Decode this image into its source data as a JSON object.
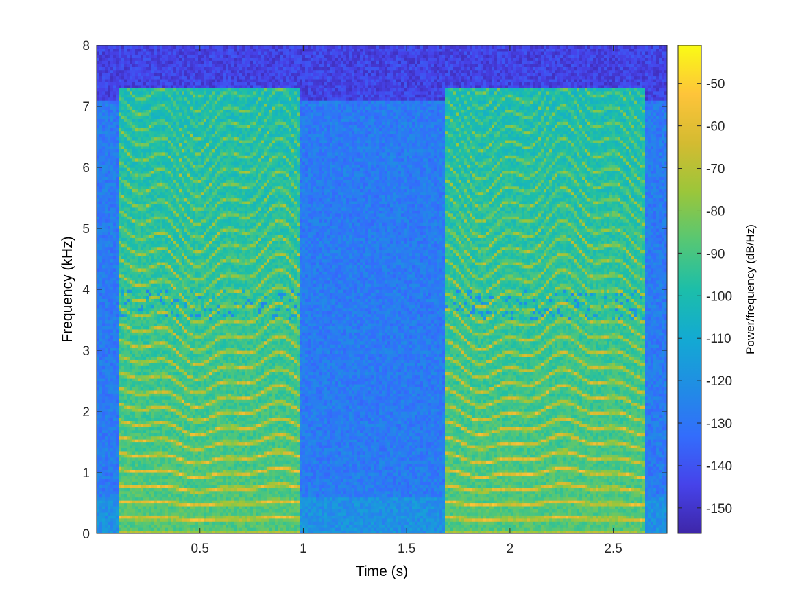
{
  "chart_data": {
    "type": "heatmap",
    "title": "",
    "xlabel": "Time (s)",
    "ylabel": "Frequency (kHz)",
    "xlim": [
      0,
      2.76
    ],
    "ylim": [
      0,
      8
    ],
    "x_ticks": [
      0.5,
      1,
      1.5,
      2,
      2.5
    ],
    "x_tick_labels": [
      "0.5",
      "1",
      "1.5",
      "2",
      "2.5"
    ],
    "y_ticks": [
      0,
      1,
      2,
      3,
      4,
      5,
      6,
      7,
      8
    ],
    "y_tick_labels": [
      "0",
      "1",
      "2",
      "3",
      "4",
      "5",
      "6",
      "7",
      "8"
    ],
    "colormap": "parula",
    "colorbar": {
      "label": "Power/frequency (dB/Hz)",
      "range": [
        -156,
        -41
      ],
      "ticks": [
        -50,
        -60,
        -70,
        -80,
        -90,
        -100,
        -110,
        -120,
        -130,
        -140,
        -150
      ],
      "tick_labels": [
        "-50",
        "-60",
        "-70",
        "-80",
        "-90",
        "-100",
        "-110",
        "-120",
        "-130",
        "-140",
        "-150"
      ]
    },
    "voiced_segments_s": [
      [
        0.1,
        0.98
      ],
      [
        1.68,
        2.66
      ]
    ],
    "silence_segment_s": [
      1.0,
      1.66
    ],
    "harmonic_bands_khz": [
      0.25,
      0.5,
      0.75,
      1.0,
      1.25,
      1.5,
      1.75,
      2.0,
      2.25,
      2.5
    ],
    "grid": false,
    "background_level_db": -120,
    "noise_floor_high_freq_db": -145
  },
  "colors": {
    "axes": "#262626",
    "parula_low": "#3e26a8",
    "parula_high": "#f9fb15"
  }
}
